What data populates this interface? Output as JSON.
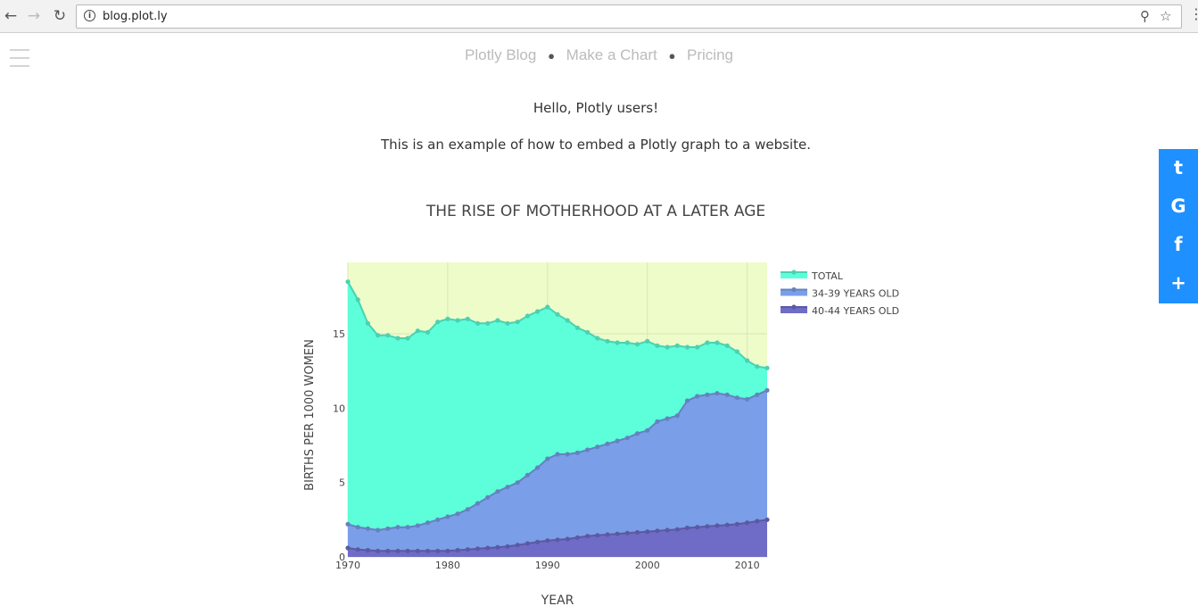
{
  "browser": {
    "back_icon": "arrow-left-icon",
    "forward_icon": "arrow-right-icon",
    "reload_icon": "reload-icon",
    "url": "blog.plot.ly"
  },
  "nav": {
    "items": [
      "Plotly Blog",
      "Make a Chart",
      "Pricing"
    ]
  },
  "content": {
    "greeting": "Hello, Plotly users!",
    "intro": "This is an example of how to embed a Plotly graph to a website."
  },
  "share": {
    "buttons": [
      "t",
      "G",
      "f",
      "+"
    ],
    "color": "#1e90ff"
  },
  "chart_data": {
    "type": "area",
    "title": "THE RISE OF MOTHERHOOD AT A LATER AGE",
    "xlabel": "YEAR",
    "ylabel": "BIRTHS PER 1000 WOMEN",
    "xlim": [
      1970,
      2012
    ],
    "ylim": [
      0,
      19.8
    ],
    "x_ticks": [
      1970,
      1980,
      1990,
      2000,
      2010
    ],
    "y_ticks": [
      0,
      5,
      10,
      15
    ],
    "background": "#eefcc9",
    "legend_position": "right",
    "x": [
      1970,
      1971,
      1972,
      1973,
      1974,
      1975,
      1976,
      1977,
      1978,
      1979,
      1980,
      1981,
      1982,
      1983,
      1984,
      1985,
      1986,
      1987,
      1988,
      1989,
      1990,
      1991,
      1992,
      1993,
      1994,
      1995,
      1996,
      1997,
      1998,
      1999,
      2000,
      2001,
      2002,
      2003,
      2004,
      2005,
      2006,
      2007,
      2008,
      2009,
      2010,
      2011,
      2012
    ],
    "series": [
      {
        "name": "TOTAL",
        "color": "#5cffd9",
        "values": [
          18.5,
          17.3,
          15.7,
          14.9,
          14.9,
          14.7,
          14.7,
          15.2,
          15.1,
          15.8,
          16.0,
          15.9,
          16.0,
          15.7,
          15.7,
          15.9,
          15.7,
          15.8,
          16.2,
          16.5,
          16.8,
          16.3,
          15.9,
          15.4,
          15.1,
          14.7,
          14.5,
          14.4,
          14.4,
          14.3,
          14.5,
          14.2,
          14.1,
          14.2,
          14.1,
          14.1,
          14.4,
          14.4,
          14.2,
          13.8,
          13.2,
          12.8,
          12.7
        ]
      },
      {
        "name": "34-39 YEARS OLD",
        "color": "#7b9ee9",
        "values": [
          2.2,
          2.0,
          1.9,
          1.8,
          1.9,
          2.0,
          2.0,
          2.1,
          2.3,
          2.5,
          2.7,
          2.9,
          3.2,
          3.6,
          4.0,
          4.4,
          4.7,
          5.0,
          5.5,
          6.0,
          6.6,
          6.9,
          6.9,
          7.0,
          7.2,
          7.4,
          7.6,
          7.8,
          8.0,
          8.3,
          8.5,
          9.1,
          9.3,
          9.5,
          10.5,
          10.8,
          10.9,
          11.0,
          10.9,
          10.7,
          10.6,
          10.9,
          11.2
        ]
      },
      {
        "name": "40-44 YEARS OLD",
        "color": "#6f6cc7",
        "values": [
          0.6,
          0.5,
          0.45,
          0.4,
          0.4,
          0.4,
          0.4,
          0.4,
          0.4,
          0.4,
          0.4,
          0.45,
          0.5,
          0.55,
          0.6,
          0.65,
          0.7,
          0.8,
          0.9,
          1.0,
          1.1,
          1.15,
          1.2,
          1.3,
          1.4,
          1.45,
          1.5,
          1.55,
          1.6,
          1.65,
          1.7,
          1.75,
          1.8,
          1.85,
          1.95,
          2.0,
          2.05,
          2.1,
          2.15,
          2.2,
          2.3,
          2.4,
          2.5
        ]
      }
    ]
  }
}
